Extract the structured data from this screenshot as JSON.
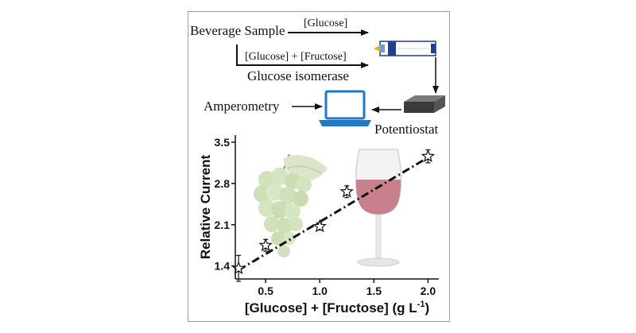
{
  "workflow": {
    "beverage_sample": "Beverage Sample",
    "glucose_label": "[Glucose]",
    "glucose_fructose_label": "[Glucose] + [Fructose]",
    "glucose_isomerase": "Glucose isomerase",
    "amperometry": "Amperometry",
    "potentiostat": "Potentiostat"
  },
  "icons": [
    "electrode-icon",
    "potentiostat-icon",
    "laptop-icon",
    "grapes-icon",
    "wine-glass-icon"
  ],
  "colors": {
    "arrow": "#111111",
    "electrode_blue": "#1f3f8f",
    "electrode_tip": "#e0b020",
    "laptop_blue": "#1f78c8",
    "grape_green": "#c9dcb0",
    "wine_red": "#b2485a"
  },
  "chart_data": {
    "type": "scatter",
    "xlabel": "[Glucose] + [Fructose] (g L",
    "xlabel_sup": "-1",
    "xlabel_end": ")",
    "ylabel": "Relative Current",
    "xlim": [
      0.22,
      2.1
    ],
    "ylim": [
      1.18,
      3.62
    ],
    "x_ticks": [
      0.5,
      1.0,
      1.5,
      2.0
    ],
    "x_tick_labels": [
      "0.5",
      "1.0",
      "1.5",
      "2.0"
    ],
    "y_ticks": [
      1.4,
      2.1,
      2.8,
      3.5
    ],
    "y_tick_labels": [
      "1.4",
      "2.1",
      "2.8",
      "3.5"
    ],
    "marker": "star",
    "points": [
      {
        "x": 0.25,
        "y": 1.36,
        "err": 0.22
      },
      {
        "x": 0.5,
        "y": 1.75,
        "err": 0.1
      },
      {
        "x": 1.0,
        "y": 2.07,
        "err": 0.06
      },
      {
        "x": 1.25,
        "y": 2.66,
        "err": 0.1
      },
      {
        "x": 2.0,
        "y": 3.26,
        "err": 0.11
      }
    ],
    "fit_line": {
      "style": "dash-dot",
      "x": [
        0.25,
        2.0
      ],
      "y": [
        1.33,
        3.24
      ]
    }
  }
}
